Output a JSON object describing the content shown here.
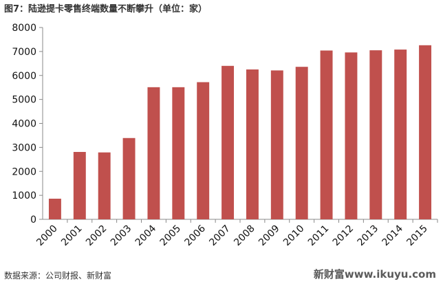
{
  "title": "图7：陆逊提卡零售终端数量不断攀升（单位：家）",
  "source": "数据来源：公司财报、新财富",
  "watermark": "新财富www.ikuyu.com",
  "chart_data": {
    "type": "bar",
    "categories": [
      "2000",
      "2001",
      "2002",
      "2003",
      "2004",
      "2005",
      "2006",
      "2007",
      "2008",
      "2009",
      "2010",
      "2011",
      "2012",
      "2013",
      "2014",
      "2015"
    ],
    "values": [
      860,
      2810,
      2790,
      3390,
      5510,
      5510,
      5720,
      6400,
      6250,
      6210,
      6360,
      7040,
      6960,
      7050,
      7080,
      7260
    ],
    "ylim": [
      0,
      8000
    ],
    "yticks": [
      0,
      1000,
      2000,
      3000,
      4000,
      5000,
      6000,
      7000,
      8000
    ],
    "bar_color": "#c0504d",
    "grid": false,
    "legend": "none"
  }
}
